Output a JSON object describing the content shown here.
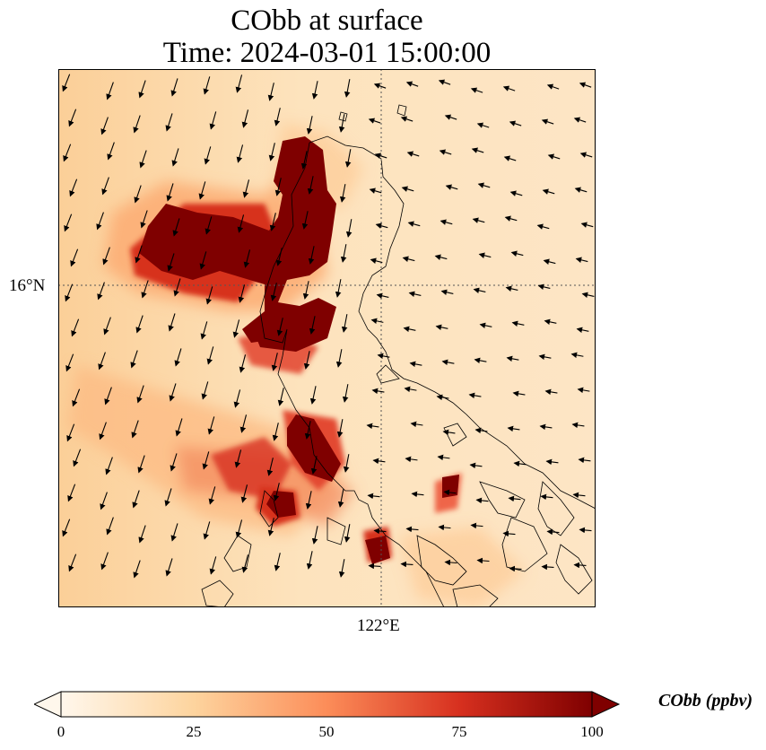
{
  "title": {
    "line1": "CObb at surface",
    "line2": "Time: 2024-03-01 15:00:00"
  },
  "map": {
    "lat_label": "16°N",
    "lon_label": "122°E"
  },
  "colorbar": {
    "label": "CObb (ppbv)",
    "ticks": [
      "0",
      "25",
      "50",
      "75",
      "100"
    ],
    "min": 0,
    "max": 100,
    "colors": [
      "#fff7ec",
      "#fdd49e",
      "#fc8d59",
      "#d7301f",
      "#7f0000"
    ]
  }
}
